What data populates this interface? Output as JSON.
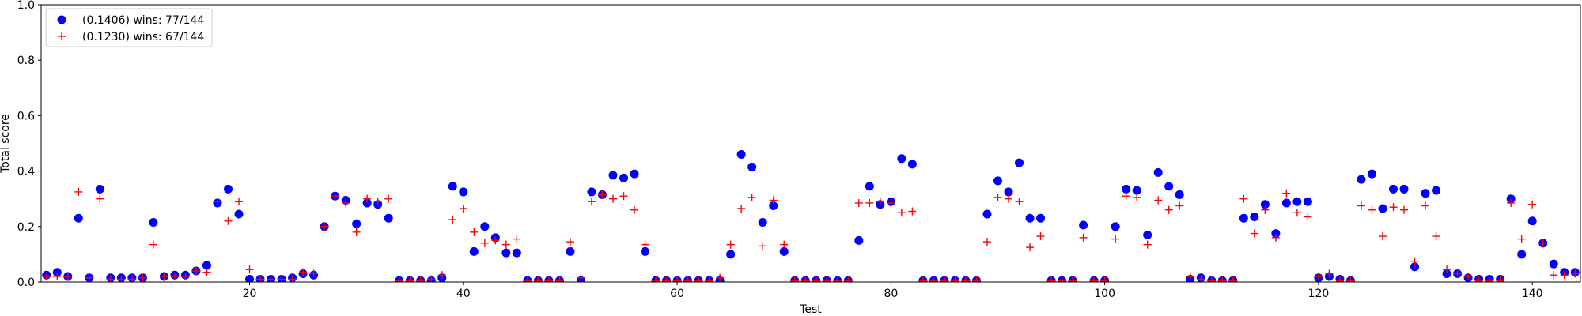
{
  "chart_data": {
    "type": "scatter",
    "xlabel": "Test",
    "ylabel": "Total score",
    "xlim": [
      1,
      144
    ],
    "ylim": [
      0,
      1.0
    ],
    "xticks": [
      "20",
      "40",
      "60",
      "80",
      "100",
      "120",
      "140"
    ],
    "yticks": [
      "0.0",
      "0.2",
      "0.4",
      "0.6",
      "0.8",
      "1.0"
    ],
    "grid": false,
    "legend_position": "top-left",
    "series": [
      {
        "name": "(0.1406) wins: 77/144",
        "marker": "circle",
        "color": "#0000ff",
        "values": [
          0.025,
          0.035,
          0.02,
          0.23,
          0.015,
          0.335,
          0.015,
          0.015,
          0.015,
          0.015,
          0.215,
          0.02,
          0.025,
          0.025,
          0.04,
          0.06,
          0.285,
          0.335,
          0.245,
          0.01,
          0.01,
          0.01,
          0.01,
          0.015,
          0.03,
          0.025,
          0.2,
          0.31,
          0.295,
          0.21,
          0.285,
          0.28,
          0.23,
          0.005,
          0.005,
          0.005,
          0.005,
          0.015,
          0.345,
          0.325,
          0.11,
          0.2,
          0.16,
          0.105,
          0.105,
          0.005,
          0.005,
          0.005,
          0.005,
          0.11,
          0.005,
          0.325,
          0.315,
          0.385,
          0.375,
          0.39,
          0.11,
          0.005,
          0.005,
          0.005,
          0.005,
          0.005,
          0.005,
          0.005,
          0.1,
          0.46,
          0.415,
          0.215,
          0.275,
          0.11,
          0.005,
          0.005,
          0.005,
          0.005,
          0.005,
          0.005,
          0.15,
          0.345,
          0.28,
          0.29,
          0.445,
          0.425,
          0.005,
          0.005,
          0.005,
          0.005,
          0.005,
          0.005,
          0.245,
          0.365,
          0.325,
          0.43,
          0.23,
          0.23,
          0.005,
          0.005,
          0.005,
          0.205,
          0.005,
          0.005,
          0.2,
          0.335,
          0.33,
          0.17,
          0.395,
          0.345,
          0.315,
          0.01,
          0.015,
          0.005,
          0.005,
          0.005,
          0.23,
          0.235,
          0.28,
          0.175,
          0.285,
          0.29,
          0.29,
          0.015,
          0.02,
          0.01,
          0.005,
          0.37,
          0.39,
          0.265,
          0.335,
          0.335,
          0.055,
          0.32,
          0.33,
          0.03,
          0.03,
          0.015,
          0.01,
          0.01,
          0.01,
          0.3,
          0.1,
          0.22,
          0.14,
          0.065,
          0.035,
          0.035
        ]
      },
      {
        "name": "(0.1230) wins: 67/144",
        "marker": "plus",
        "color": "#ff0000",
        "values": [
          0.02,
          0.02,
          0.02,
          0.325,
          0.015,
          0.3,
          0.01,
          0.01,
          0.01,
          0.015,
          0.135,
          0.02,
          0.02,
          0.02,
          0.04,
          0.035,
          0.29,
          0.22,
          0.29,
          0.045,
          0.01,
          0.01,
          0.01,
          0.01,
          0.035,
          0.03,
          0.2,
          0.31,
          0.285,
          0.18,
          0.3,
          0.29,
          0.3,
          0.005,
          0.005,
          0.005,
          0.01,
          0.025,
          0.225,
          0.265,
          0.18,
          0.14,
          0.15,
          0.135,
          0.155,
          0.005,
          0.005,
          0.005,
          0.005,
          0.145,
          0.015,
          0.29,
          0.315,
          0.3,
          0.31,
          0.26,
          0.135,
          0.005,
          0.005,
          0.005,
          0.005,
          0.005,
          0.005,
          0.015,
          0.135,
          0.265,
          0.305,
          0.13,
          0.295,
          0.135,
          0.005,
          0.005,
          0.005,
          0.005,
          0.005,
          0.005,
          0.285,
          0.285,
          0.29,
          0.285,
          0.25,
          0.255,
          0.005,
          0.005,
          0.005,
          0.005,
          0.005,
          0.005,
          0.145,
          0.305,
          0.3,
          0.29,
          0.125,
          0.165,
          0.005,
          0.005,
          0.005,
          0.16,
          0.005,
          0.005,
          0.155,
          0.31,
          0.305,
          0.135,
          0.295,
          0.26,
          0.275,
          0.02,
          0.01,
          0.005,
          0.005,
          0.005,
          0.3,
          0.175,
          0.26,
          0.16,
          0.32,
          0.25,
          0.235,
          0.02,
          0.03,
          0.005,
          0.005,
          0.275,
          0.26,
          0.165,
          0.27,
          0.26,
          0.075,
          0.275,
          0.165,
          0.045,
          0.03,
          0.02,
          0.005,
          0.005,
          0.005,
          0.285,
          0.155,
          0.28,
          0.14,
          0.025,
          0.025,
          0.03
        ]
      }
    ]
  }
}
